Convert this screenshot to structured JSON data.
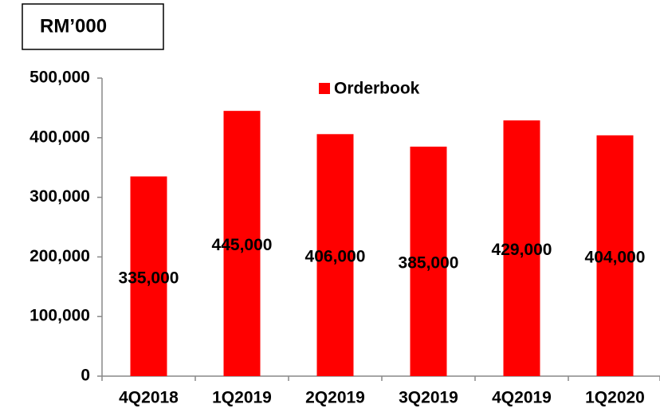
{
  "chart_data": {
    "type": "bar",
    "title": "RM’000",
    "categories": [
      "4Q2018",
      "1Q2019",
      "2Q2019",
      "3Q2019",
      "4Q2019",
      "1Q2020"
    ],
    "series": [
      {
        "name": "Orderbook",
        "color": "#ff0000",
        "values": [
          335000,
          445000,
          406000,
          385000,
          429000,
          404000
        ],
        "value_labels": [
          "335,000",
          "445,000",
          "406,000",
          "385,000",
          "429,000",
          "404,000"
        ]
      }
    ],
    "ylim": [
      0,
      500000
    ],
    "yticks": [
      0,
      {
        "value": 100000,
        "label": "100,000"
      },
      {
        "value": 200000,
        "label": "200,000"
      },
      {
        "value": 300000,
        "label": "300,000"
      },
      {
        "value": 400000,
        "label": "400,000"
      },
      {
        "value": 500000,
        "label": "500,000"
      }
    ],
    "grid": false,
    "legend": "top"
  }
}
